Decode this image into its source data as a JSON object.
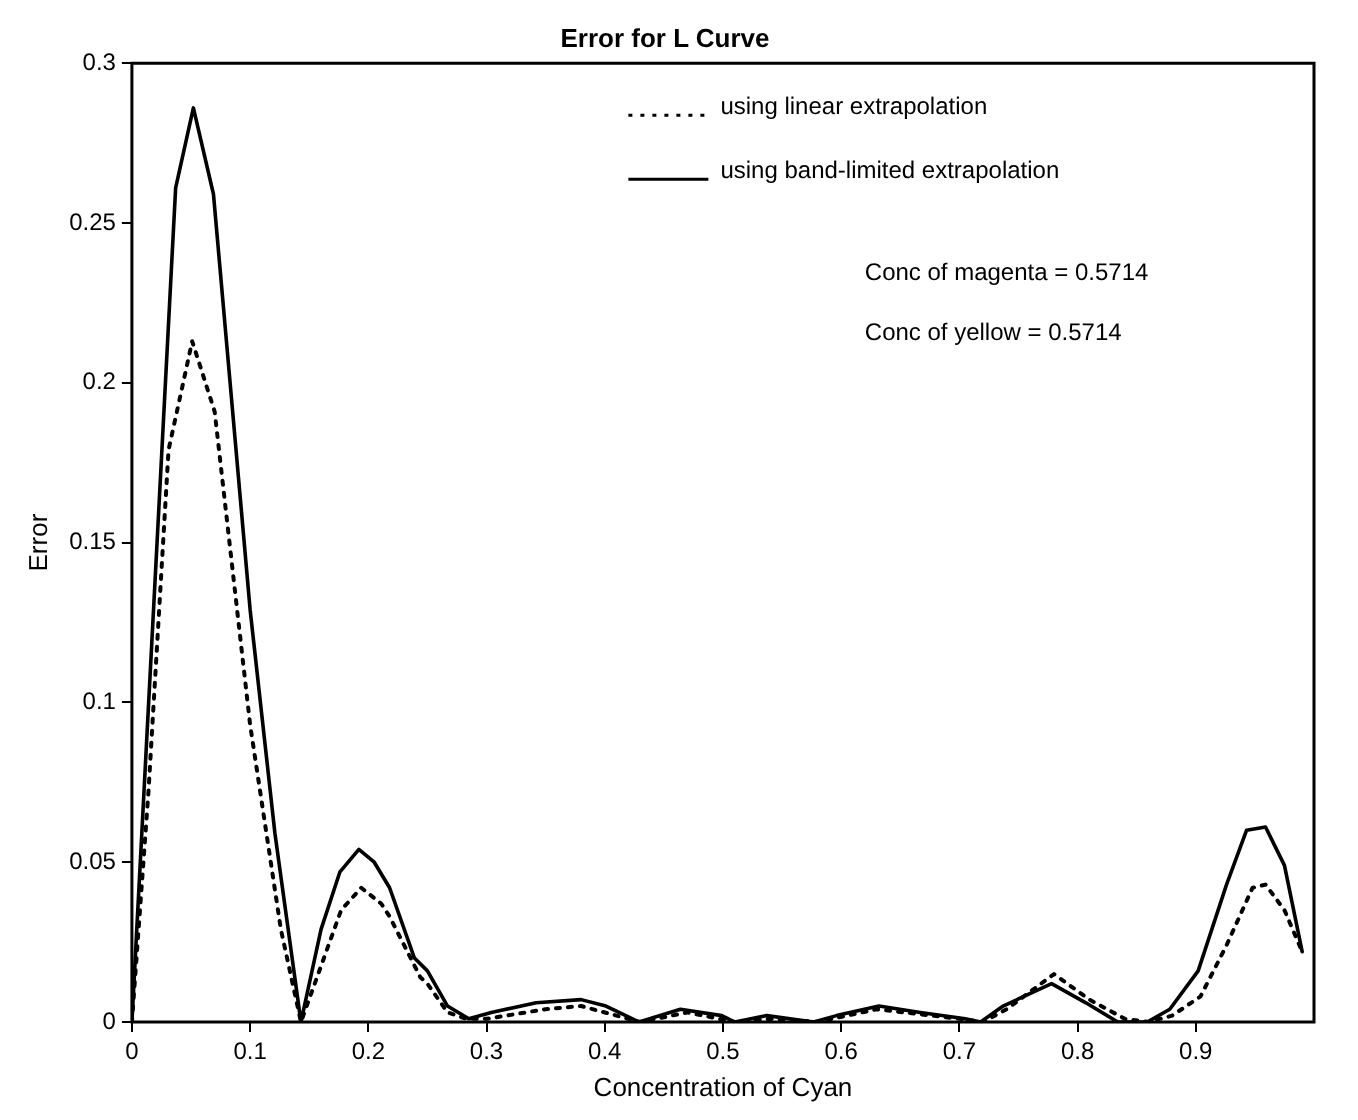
{
  "chart_data": {
    "type": "line",
    "title": "Error for L Curve",
    "xlabel": "Concentration of Cyan",
    "ylabel": "Error",
    "xlim": [
      0,
      1
    ],
    "ylim": [
      0,
      0.3
    ],
    "xticks": [
      0,
      0.1,
      0.2,
      0.3,
      0.4,
      0.5,
      0.6,
      0.7,
      0.8,
      0.9
    ],
    "yticks": [
      0,
      0.05,
      0.1,
      0.15,
      0.2,
      0.25,
      0.3
    ],
    "grid": false,
    "legend": "top",
    "marker": "none",
    "annotations": [
      "Conc of magenta = 0.5714",
      "Conc of yellow = 0.5714"
    ],
    "series": [
      {
        "name": "using linear extrapolation",
        "color": "#000000",
        "line_style": "dotted",
        "x": [
          0,
          0.014,
          0.031,
          0.051,
          0.07,
          0.1,
          0.126,
          0.143,
          0.177,
          0.194,
          0.211,
          0.218,
          0.244,
          0.25,
          0.267,
          0.283,
          0.3,
          0.35,
          0.38,
          0.43,
          0.47,
          0.51,
          0.54,
          0.58,
          0.63,
          0.7,
          0.72,
          0.74,
          0.78,
          0.81,
          0.84,
          0.86,
          0.88,
          0.904,
          0.926,
          0.948,
          0.959,
          0.975,
          0.99
        ],
        "values": [
          0,
          0.072,
          0.179,
          0.213,
          0.191,
          0.093,
          0.029,
          0,
          0.035,
          0.042,
          0.037,
          0.033,
          0.014,
          0.012,
          0.003,
          0.001,
          0.001,
          0.004,
          0.005,
          0,
          0.003,
          0,
          0.001,
          0,
          0.004,
          0.001,
          0,
          0.004,
          0.015,
          0.007,
          0.001,
          0,
          0.002,
          0.008,
          0.024,
          0.042,
          0.043,
          0.035,
          0.022
        ]
      },
      {
        "name": "using band-limited extrapolation",
        "color": "#000000",
        "line_style": "solid",
        "x": [
          0,
          0.037,
          0.052,
          0.069,
          0.1,
          0.121,
          0.143,
          0.16,
          0.176,
          0.192,
          0.205,
          0.218,
          0.239,
          0.25,
          0.267,
          0.285,
          0.304,
          0.342,
          0.38,
          0.401,
          0.429,
          0.464,
          0.499,
          0.51,
          0.537,
          0.577,
          0.596,
          0.632,
          0.667,
          0.705,
          0.718,
          0.737,
          0.778,
          0.807,
          0.834,
          0.859,
          0.878,
          0.902,
          0.926,
          0.943,
          0.959,
          0.975,
          0.99
        ],
        "values": [
          0,
          0.261,
          0.286,
          0.259,
          0.129,
          0.059,
          0,
          0.029,
          0.047,
          0.054,
          0.05,
          0.042,
          0.02,
          0.016,
          0.005,
          0.001,
          0.003,
          0.006,
          0.007,
          0.005,
          0,
          0.004,
          0.002,
          0,
          0.002,
          0,
          0.002,
          0.005,
          0.003,
          0.001,
          0,
          0.005,
          0.012,
          0.006,
          0,
          0,
          0.004,
          0.016,
          0.043,
          0.06,
          0.061,
          0.049,
          0.022
        ]
      }
    ]
  }
}
